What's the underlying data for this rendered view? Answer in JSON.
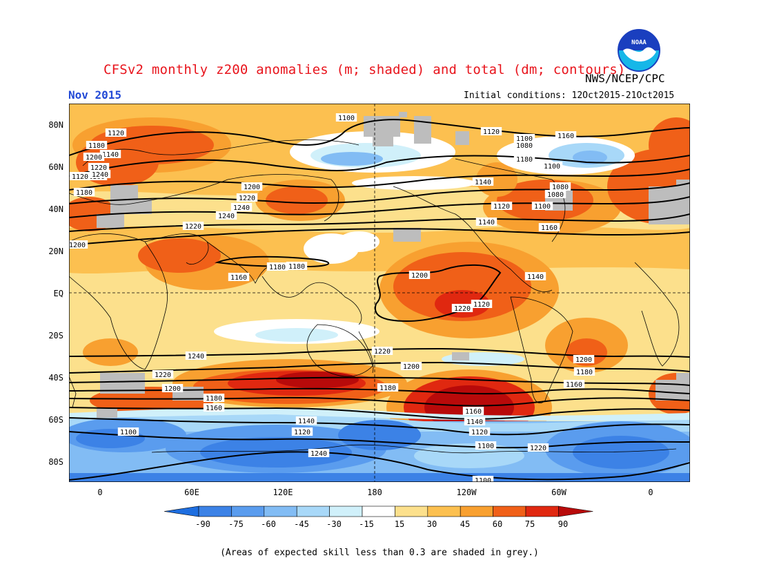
{
  "header": {
    "title": "CFSv2 monthly z200 anomalies (m; shaded) and total (dm; contours)",
    "agency": "NWS/NCEP/CPC",
    "logo_text": "NOAA",
    "month": "Nov 2015",
    "initial_conditions": "Initial conditions: 12Oct2015-21Oct2015"
  },
  "map": {
    "lat_labels": [
      "80N",
      "60N",
      "40N",
      "20N",
      "EQ",
      "20S",
      "40S",
      "60S",
      "80S"
    ],
    "lon_labels": [
      "0",
      "60E",
      "120E",
      "180",
      "120W",
      "60W",
      "0"
    ],
    "contour_labels": [
      "1100",
      "1120",
      "1140",
      "1160",
      "1180",
      "1200",
      "1220",
      "1240",
      "1240",
      "1220",
      "1200",
      "1180",
      "1160",
      "1140",
      "1120",
      "1100",
      "1080",
      "1080",
      "1100",
      "1120",
      "1140",
      "1160",
      "1180",
      "1200",
      "1220",
      "1240",
      "1220",
      "1200",
      "1180",
      "1160",
      "1140",
      "1120",
      "1100",
      "1220",
      "1200",
      "1180",
      "1160",
      "1140",
      "1120",
      "1100",
      "1240",
      "1220",
      "1200",
      "1180",
      "1160",
      "1140",
      "1120",
      "1100",
      "1080",
      "1100",
      "1120",
      "1160",
      "1180",
      "1200",
      "1220",
      "1240",
      "1180"
    ]
  },
  "colorbar": {
    "labels": [
      "-90",
      "-75",
      "-60",
      "-45",
      "-30",
      "-15",
      "15",
      "30",
      "45",
      "60",
      "75",
      "90"
    ],
    "colors": [
      "#1e6ee0",
      "#3c82e6",
      "#5a9cee",
      "#82bcf4",
      "#a8d8f8",
      "#d0f0fa",
      "#ffffff",
      "#fce08c",
      "#fcc050",
      "#f8a030",
      "#f06018",
      "#e02810",
      "#b80a0a"
    ]
  },
  "footer": {
    "note": "(Areas of expected skill less than 0.3 are shaded in grey.)"
  }
}
